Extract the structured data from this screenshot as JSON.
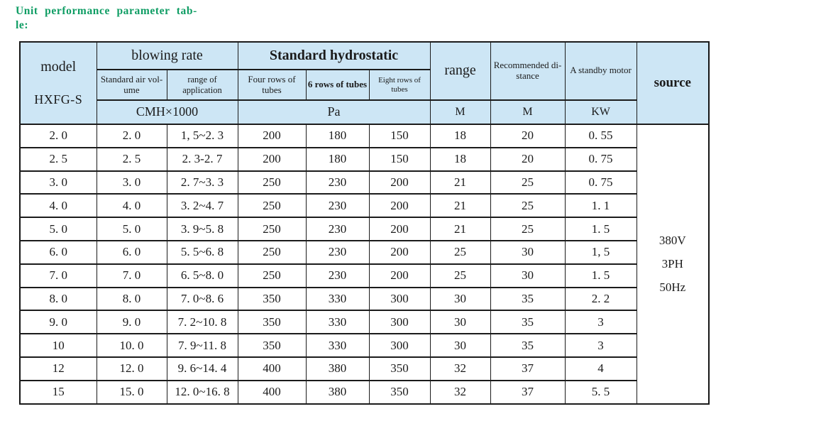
{
  "title": "Unit performance parameter tab-\nle:",
  "colors": {
    "title_green": "#0f9d64",
    "header_blue": "#cde6f5",
    "border": "#1b1b1b",
    "body_bg": "#ffffff"
  },
  "table": {
    "header": {
      "model_label": "model",
      "model_code": "HXFG-S",
      "blowing_rate": "blowing rate",
      "std_air_volume": "Standard air vol-\nume",
      "range_of_application": "range of application",
      "standard_hydrostatic": "Standard hydrostatic",
      "four_rows": "Four rows of tubes",
      "six_rows": "6 rows of tubes",
      "eight_rows": "Eight rows of tubes",
      "range": "range",
      "recommended_distance": "Recommended di-\nstance",
      "standby_motor": "A standby motor",
      "source": "source",
      "units": {
        "blowing": "CMH×1000",
        "hydrostatic": "Pa",
        "range": "M",
        "distance": "M",
        "motor": "KW"
      }
    },
    "rows": [
      [
        "2. 0",
        "2. 0",
        "1, 5~2. 3",
        "200",
        "180",
        "150",
        "18",
        "20",
        "0. 55"
      ],
      [
        "2. 5",
        "2. 5",
        "2. 3-2. 7",
        "200",
        "180",
        "150",
        "18",
        "20",
        "0. 75"
      ],
      [
        "3. 0",
        "3. 0",
        "2. 7~3. 3",
        "250",
        "230",
        "200",
        "21",
        "25",
        "0. 75"
      ],
      [
        "4. 0",
        "4. 0",
        "3. 2~4. 7",
        "250",
        "230",
        "200",
        "21",
        "25",
        "1. 1"
      ],
      [
        "5. 0",
        "5. 0",
        "3. 9~5. 8",
        "250",
        "230",
        "200",
        "21",
        "25",
        "1. 5"
      ],
      [
        "6. 0",
        "6. 0",
        "5. 5~6. 8",
        "250",
        "230",
        "200",
        "25",
        "30",
        "1, 5"
      ],
      [
        "7. 0",
        "7. 0",
        "6. 5~8. 0",
        "250",
        "230",
        "200",
        "25",
        "30",
        "1. 5"
      ],
      [
        "8. 0",
        "8. 0",
        "7. 0~8. 6",
        "350",
        "330",
        "300",
        "30",
        "35",
        "2. 2"
      ],
      [
        "9. 0",
        "9. 0",
        "7. 2~10. 8",
        "350",
        "330",
        "300",
        "30",
        "35",
        "3"
      ],
      [
        "10",
        "10. 0",
        "7. 9~11. 8",
        "350",
        "330",
        "300",
        "30",
        "35",
        "3"
      ],
      [
        "12",
        "12. 0",
        "9. 6~14. 4",
        "400",
        "380",
        "350",
        "32",
        "37",
        "4"
      ],
      [
        "15",
        "15. 0",
        "12. 0~16. 8",
        "400",
        "380",
        "350",
        "32",
        "37",
        "5. 5"
      ]
    ],
    "source_values": [
      "380V",
      "3PH",
      "50Hz"
    ]
  }
}
